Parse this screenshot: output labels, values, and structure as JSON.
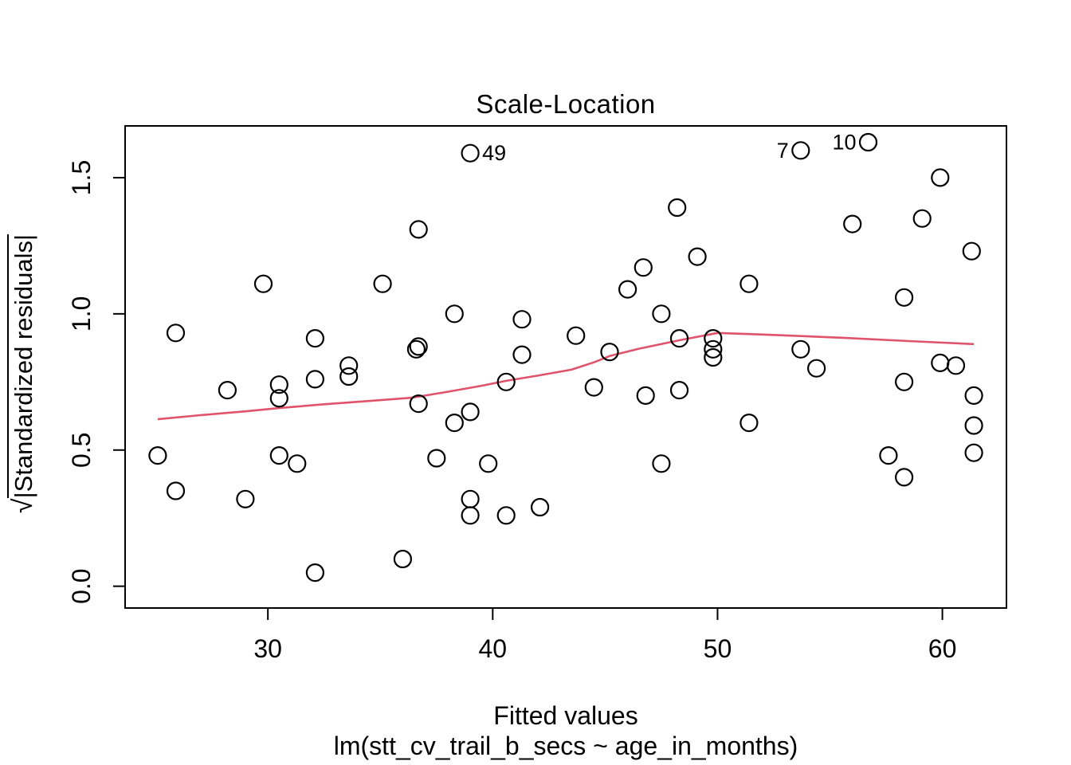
{
  "title": "Scale-Location",
  "x_axis": {
    "label": "Fitted values",
    "sublabel": "lm(stt_cv_trail_b_secs ~ age_in_months)",
    "ticks": [
      30,
      40,
      50,
      60
    ],
    "tick_labels": [
      "30",
      "40",
      "50",
      "60"
    ],
    "range": [
      23.65,
      62.85
    ]
  },
  "y_axis": {
    "label_prefix": "√",
    "label_radicand": "|Standardized residuals|",
    "ticks": [
      0.0,
      0.5,
      1.0,
      1.5
    ],
    "tick_labels": [
      "0.0",
      "0.5",
      "1.0",
      "1.5"
    ],
    "range": [
      -0.08,
      1.69
    ]
  },
  "colors": {
    "smooth_line": "#DF536B",
    "points": "#000000",
    "axis": "#000000"
  },
  "chart_data": {
    "type": "scatter",
    "title": "Scale-Location",
    "xlabel": "Fitted values",
    "ylabel": "sqrt(|Standardized residuals|)",
    "xlim": [
      23.65,
      62.85
    ],
    "ylim": [
      -0.08,
      1.69
    ],
    "grid": false,
    "points": [
      [
        29.8,
        1.11
      ],
      [
        35.1,
        1.11
      ],
      [
        25.9,
        0.93
      ],
      [
        32.1,
        0.91
      ],
      [
        33.6,
        0.81
      ],
      [
        48.2,
        1.39
      ],
      [
        36.7,
        1.31
      ],
      [
        49.1,
        1.21
      ],
      [
        46.7,
        1.17
      ],
      [
        46.0,
        1.09
      ],
      [
        38.3,
        1.0
      ],
      [
        47.5,
        1.0
      ],
      [
        41.3,
        0.98
      ],
      [
        43.7,
        0.92
      ],
      [
        48.3,
        0.91
      ],
      [
        45.2,
        0.86
      ],
      [
        36.6,
        0.87
      ],
      [
        36.7,
        0.88
      ],
      [
        41.3,
        0.85
      ],
      [
        59.9,
        1.5
      ],
      [
        56.0,
        1.33
      ],
      [
        59.1,
        1.35
      ],
      [
        61.3,
        1.23
      ],
      [
        51.4,
        1.11
      ],
      [
        58.3,
        1.06
      ],
      [
        49.8,
        0.91
      ],
      [
        49.8,
        0.87
      ],
      [
        49.8,
        0.84
      ],
      [
        53.7,
        0.87
      ],
      [
        54.4,
        0.8
      ],
      [
        59.9,
        0.82
      ],
      [
        60.6,
        0.81
      ],
      [
        28.2,
        0.72
      ],
      [
        30.5,
        0.74
      ],
      [
        30.5,
        0.69
      ],
      [
        32.1,
        0.76
      ],
      [
        33.6,
        0.77
      ],
      [
        25.1,
        0.48
      ],
      [
        30.5,
        0.48
      ],
      [
        31.3,
        0.45
      ],
      [
        25.9,
        0.35
      ],
      [
        29.0,
        0.32
      ],
      [
        32.1,
        0.05
      ],
      [
        36.0,
        0.1
      ],
      [
        36.7,
        0.67
      ],
      [
        40.6,
        0.75
      ],
      [
        39.0,
        0.64
      ],
      [
        38.3,
        0.6
      ],
      [
        44.5,
        0.73
      ],
      [
        46.8,
        0.7
      ],
      [
        48.3,
        0.72
      ],
      [
        37.5,
        0.47
      ],
      [
        39.8,
        0.45
      ],
      [
        47.5,
        0.45
      ],
      [
        39.0,
        0.32
      ],
      [
        39.0,
        0.26
      ],
      [
        40.6,
        0.26
      ],
      [
        42.1,
        0.29
      ],
      [
        58.3,
        0.75
      ],
      [
        61.4,
        0.7
      ],
      [
        51.4,
        0.6
      ],
      [
        61.4,
        0.59
      ],
      [
        57.6,
        0.48
      ],
      [
        61.4,
        0.49
      ],
      [
        58.3,
        0.4
      ]
    ],
    "labeled_points": [
      {
        "label": "49",
        "x": 39.0,
        "y": 1.59,
        "side": "right"
      },
      {
        "label": "7",
        "x": 53.7,
        "y": 1.6,
        "side": "left"
      },
      {
        "label": "10",
        "x": 56.7,
        "y": 1.63,
        "side": "left"
      }
    ],
    "smooth_line": [
      [
        25.1,
        0.613
      ],
      [
        27.0,
        0.628
      ],
      [
        29.0,
        0.642
      ],
      [
        30.5,
        0.654
      ],
      [
        32.5,
        0.668
      ],
      [
        34.5,
        0.68
      ],
      [
        36.4,
        0.692
      ],
      [
        38.0,
        0.714
      ],
      [
        39.5,
        0.736
      ],
      [
        40.6,
        0.754
      ],
      [
        42.0,
        0.773
      ],
      [
        43.5,
        0.795
      ],
      [
        44.5,
        0.822
      ],
      [
        45.2,
        0.845
      ],
      [
        46.5,
        0.872
      ],
      [
        48.3,
        0.903
      ],
      [
        50.0,
        0.93
      ],
      [
        52.0,
        0.924
      ],
      [
        55.6,
        0.912
      ],
      [
        58.5,
        0.9
      ],
      [
        61.4,
        0.889
      ]
    ],
    "legend": null
  }
}
